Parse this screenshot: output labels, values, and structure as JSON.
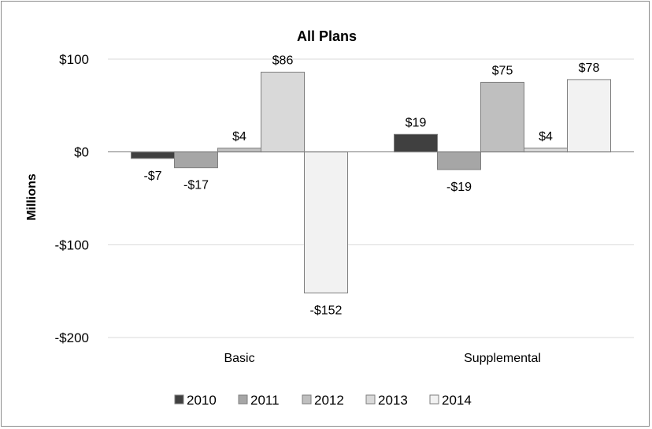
{
  "chart_data": {
    "type": "bar",
    "title": "All Plans",
    "ylabel": "Millions",
    "xlabel": "",
    "categories": [
      "Basic",
      "Supplemental"
    ],
    "series": [
      {
        "name": "2010",
        "values": [
          -7,
          19
        ],
        "labels": [
          "-$7",
          "$19"
        ],
        "color": "#404040"
      },
      {
        "name": "2011",
        "values": [
          -17,
          -19
        ],
        "labels": [
          "-$17",
          "-$19"
        ],
        "color": "#a6a6a6"
      },
      {
        "name": "2012",
        "values": [
          4,
          75
        ],
        "labels": [
          "$4",
          "$75"
        ],
        "color": "#bfbfbf"
      },
      {
        "name": "2013",
        "values": [
          86,
          4
        ],
        "labels": [
          "$86",
          "$4"
        ],
        "color": "#d9d9d9"
      },
      {
        "name": "2014",
        "values": [
          -152,
          78
        ],
        "labels": [
          "-$152",
          "$78"
        ],
        "color": "#f2f2f2"
      }
    ],
    "ylim": [
      -200,
      100
    ],
    "yticks": [
      100,
      0,
      -100,
      -200
    ],
    "ytick_labels": [
      "$100",
      "$0",
      "-$100",
      "-$200"
    ],
    "grid": true,
    "legend_position": "bottom"
  }
}
